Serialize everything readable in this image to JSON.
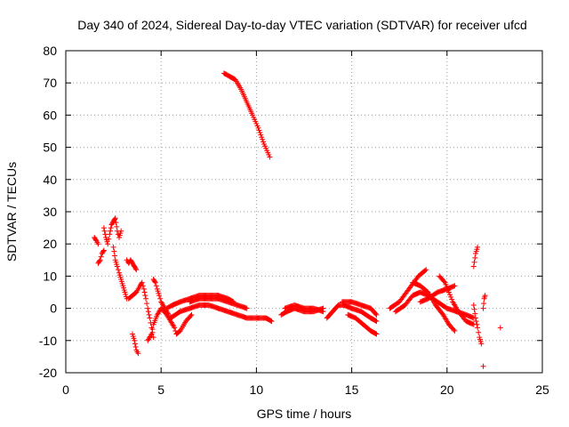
{
  "colors": {
    "series": "#ff0000",
    "axis": "#000000",
    "grid": "#a0a0a0",
    "background": "#ffffff"
  },
  "chart_data": {
    "type": "scatter",
    "title": "Day 340 of 2024, Sidereal Day-to-day VTEC variation (SDTVAR) for receiver ufcd",
    "xlabel": "GPS time / hours",
    "ylabel": "SDTVAR / TECUs",
    "xlim": [
      0,
      25
    ],
    "ylim": [
      -20,
      80
    ],
    "xticks": [
      0,
      5,
      10,
      15,
      20,
      25
    ],
    "yticks": [
      -20,
      -10,
      0,
      10,
      20,
      30,
      40,
      50,
      60,
      70,
      80
    ],
    "grid": true,
    "marker": "+",
    "series": [
      {
        "name": "SDTVAR",
        "tracks": [
          [
            [
              1.5,
              22
            ],
            [
              1.6,
              21
            ],
            [
              1.7,
              20
            ]
          ],
          [
            [
              1.7,
              14
            ],
            [
              1.8,
              15
            ],
            [
              1.9,
              17
            ],
            [
              2.0,
              18
            ]
          ],
          [
            [
              2.0,
              25
            ],
            [
              2.1,
              22
            ],
            [
              2.2,
              20
            ],
            [
              2.3,
              23
            ],
            [
              2.4,
              26
            ],
            [
              2.5,
              27
            ],
            [
              2.6,
              28
            ],
            [
              2.7,
              24
            ],
            [
              2.8,
              22
            ],
            [
              2.9,
              24
            ]
          ],
          [
            [
              2.5,
              19
            ],
            [
              2.6,
              15
            ],
            [
              2.7,
              13
            ],
            [
              2.8,
              11
            ],
            [
              2.9,
              9
            ],
            [
              3.0,
              7
            ],
            [
              3.1,
              5
            ],
            [
              3.2,
              3
            ]
          ],
          [
            [
              3.2,
              15
            ],
            [
              3.3,
              14
            ],
            [
              3.4,
              15
            ],
            [
              3.5,
              14
            ],
            [
              3.6,
              13
            ],
            [
              3.7,
              12
            ]
          ],
          [
            [
              3.5,
              -8
            ],
            [
              3.6,
              -10
            ],
            [
              3.7,
              -13
            ],
            [
              3.8,
              -14
            ]
          ],
          [
            [
              3.3,
              3
            ],
            [
              3.5,
              4
            ],
            [
              3.7,
              5
            ],
            [
              3.9,
              7
            ],
            [
              4.0,
              8
            ],
            [
              4.1,
              6
            ],
            [
              4.2,
              3
            ],
            [
              4.3,
              0
            ],
            [
              4.4,
              -3
            ],
            [
              4.5,
              -6
            ],
            [
              4.6,
              -9
            ]
          ],
          [
            [
              4.3,
              -10
            ],
            [
              4.5,
              -8
            ],
            [
              4.6,
              -5
            ],
            [
              4.8,
              -2
            ],
            [
              5.0,
              0
            ],
            [
              5.3,
              -2
            ],
            [
              5.5,
              -4
            ],
            [
              5.7,
              -6
            ],
            [
              5.8,
              -8
            ],
            [
              6.0,
              -7
            ],
            [
              6.3,
              -4
            ],
            [
              6.6,
              -2
            ]
          ],
          [
            [
              4.6,
              9
            ],
            [
              4.7,
              8
            ],
            [
              4.8,
              6
            ],
            [
              4.9,
              4
            ],
            [
              5.0,
              2
            ],
            [
              5.2,
              0
            ],
            [
              5.4,
              -2
            ]
          ],
          [
            [
              5.3,
              0
            ],
            [
              5.6,
              1
            ],
            [
              6.0,
              2
            ],
            [
              6.5,
              3
            ],
            [
              7.0,
              4
            ],
            [
              7.5,
              4
            ],
            [
              8.0,
              4
            ],
            [
              8.5,
              3
            ],
            [
              8.8,
              2
            ]
          ],
          [
            [
              5.5,
              -3
            ],
            [
              6.0,
              -1
            ],
            [
              6.5,
              0
            ],
            [
              7.0,
              1
            ],
            [
              7.5,
              1
            ],
            [
              8.0,
              0
            ],
            [
              8.5,
              -1
            ],
            [
              9.0,
              -2
            ],
            [
              9.5,
              -3
            ],
            [
              10.0,
              -3
            ],
            [
              10.5,
              -3
            ],
            [
              10.8,
              -4
            ]
          ],
          [
            [
              6.5,
              2
            ],
            [
              7.0,
              3
            ],
            [
              7.5,
              3
            ],
            [
              8.0,
              3
            ],
            [
              8.5,
              2
            ],
            [
              9.0,
              1
            ],
            [
              9.5,
              0
            ]
          ],
          [
            [
              8.3,
              73
            ],
            [
              8.6,
              72
            ],
            [
              8.9,
              71
            ],
            [
              9.2,
              68
            ],
            [
              9.5,
              64
            ],
            [
              9.8,
              60
            ],
            [
              10.1,
              56
            ],
            [
              10.4,
              51
            ],
            [
              10.7,
              47
            ]
          ],
          [
            [
              11.3,
              -2
            ],
            [
              11.6,
              -1
            ],
            [
              12.0,
              0
            ],
            [
              12.5,
              -1
            ],
            [
              13.0,
              -1
            ],
            [
              13.5,
              0
            ]
          ],
          [
            [
              11.5,
              0
            ],
            [
              12.0,
              1
            ],
            [
              12.5,
              0
            ],
            [
              13.0,
              0
            ],
            [
              13.5,
              -1
            ]
          ],
          [
            [
              13.7,
              -3
            ],
            [
              14.0,
              -1
            ],
            [
              14.3,
              1
            ],
            [
              14.6,
              1
            ],
            [
              15.0,
              0
            ],
            [
              15.5,
              -1
            ],
            [
              16.0,
              -3
            ],
            [
              16.3,
              -4
            ]
          ],
          [
            [
              14.5,
              2
            ],
            [
              15.0,
              2
            ],
            [
              15.5,
              1
            ],
            [
              16.0,
              0
            ],
            [
              16.3,
              -2
            ]
          ],
          [
            [
              14.8,
              -2
            ],
            [
              15.2,
              -3
            ],
            [
              15.6,
              -5
            ],
            [
              16.0,
              -7
            ],
            [
              16.3,
              -8
            ]
          ],
          [
            [
              17.0,
              0
            ],
            [
              17.5,
              2
            ],
            [
              18.0,
              6
            ],
            [
              18.5,
              10
            ],
            [
              18.9,
              12
            ]
          ],
          [
            [
              17.3,
              -1
            ],
            [
              17.8,
              1
            ],
            [
              18.2,
              4
            ],
            [
              18.6,
              5
            ],
            [
              19.0,
              4
            ],
            [
              19.5,
              2
            ],
            [
              20.0,
              0
            ],
            [
              20.5,
              -1
            ],
            [
              21.0,
              -2
            ],
            [
              21.4,
              -3
            ]
          ],
          [
            [
              18.2,
              8
            ],
            [
              18.6,
              7
            ],
            [
              19.0,
              5
            ],
            [
              19.4,
              1
            ],
            [
              19.8,
              -2
            ],
            [
              20.1,
              -5
            ],
            [
              20.4,
              -7
            ]
          ],
          [
            [
              18.6,
              2
            ],
            [
              19.0,
              3
            ],
            [
              19.5,
              5
            ],
            [
              20.0,
              6
            ],
            [
              20.4,
              7
            ]
          ],
          [
            [
              19.6,
              10
            ],
            [
              19.9,
              8
            ],
            [
              20.1,
              5
            ],
            [
              20.3,
              2
            ],
            [
              20.6,
              -1
            ],
            [
              21.0,
              -4
            ],
            [
              21.4,
              -5
            ]
          ],
          [
            [
              21.4,
              13
            ],
            [
              21.5,
              17
            ],
            [
              21.6,
              19
            ]
          ],
          [
            [
              21.4,
              1
            ],
            [
              21.5,
              -3
            ],
            [
              21.6,
              -6
            ],
            [
              21.7,
              -9
            ],
            [
              21.8,
              -11
            ]
          ],
          [
            [
              21.9,
              0
            ],
            [
              21.95,
              3
            ],
            [
              22.0,
              4
            ]
          ],
          [
            [
              21.9,
              -18
            ]
          ],
          [
            [
              22.8,
              -6
            ]
          ]
        ]
      }
    ]
  }
}
